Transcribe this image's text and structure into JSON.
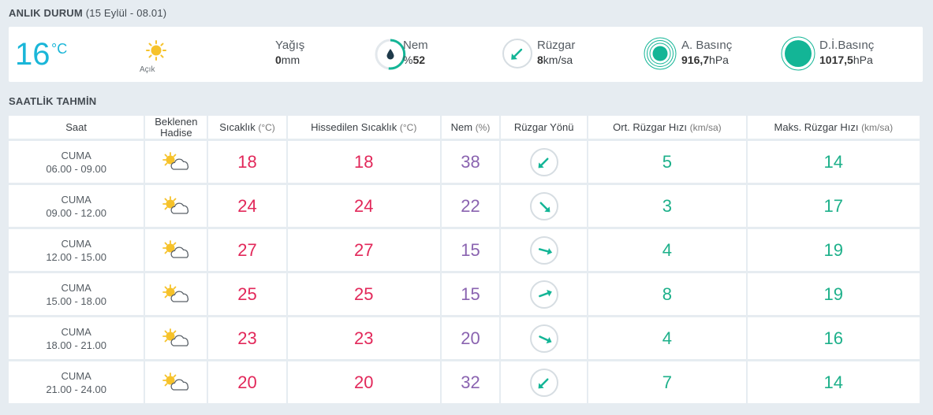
{
  "now": {
    "title": "ANLIK DURUM",
    "date_range": "(15 Eylül - 08.01)",
    "temperature": "16",
    "unit": "°C",
    "condition": "Açık",
    "condition_icon": "sun-icon",
    "precip_label": "Yağış",
    "precip_value": "0",
    "precip_unit": "mm",
    "humidity_label": "Nem",
    "humidity_prefix": "%",
    "humidity_value": "52",
    "wind_label": "Rüzgar",
    "wind_value": "8",
    "wind_unit": "km/sa",
    "pressure_label": "A. Basınç",
    "pressure_value": "916,7",
    "pressure_unit": "hPa",
    "sea_pressure_label": "D.İ.Basınç",
    "sea_pressure_value": "1017,5",
    "sea_pressure_unit": "hPa",
    "accent_color": "#1ab6d8",
    "gauge_color": "#13b596"
  },
  "hourly": {
    "title": "SAATLİK TAHMİN",
    "headers": {
      "time": "Saat",
      "event": "Beklenen Hadise",
      "temp": "Sıcaklık",
      "temp_unit": "(°C)",
      "feels": "Hissedilen Sıcaklık",
      "feels_unit": "(°C)",
      "humidity": "Nem",
      "humidity_unit": "(%)",
      "wind_dir": "Rüzgar Yönü",
      "wind_avg": "Ort. Rüzgar Hızı",
      "wind_avg_unit": "(km/sa)",
      "wind_max": "Maks. Rüzgar Hızı",
      "wind_max_unit": "(km/sa)"
    },
    "rows": [
      {
        "day": "CUMA",
        "time": "06.00 - 09.00",
        "icon": "partly-cloudy-icon",
        "temp": "18",
        "feels": "18",
        "humidity": "38",
        "wind_dir_deg": 225,
        "wind_avg": "5",
        "wind_max": "14"
      },
      {
        "day": "CUMA",
        "time": "09.00 - 12.00",
        "icon": "partly-cloudy-icon",
        "temp": "24",
        "feels": "24",
        "humidity": "22",
        "wind_dir_deg": 135,
        "wind_avg": "3",
        "wind_max": "17"
      },
      {
        "day": "CUMA",
        "time": "12.00 - 15.00",
        "icon": "partly-cloudy-icon",
        "temp": "27",
        "feels": "27",
        "humidity": "15",
        "wind_dir_deg": 105,
        "wind_avg": "4",
        "wind_max": "19"
      },
      {
        "day": "CUMA",
        "time": "15.00 - 18.00",
        "icon": "partly-cloudy-icon",
        "temp": "25",
        "feels": "25",
        "humidity": "15",
        "wind_dir_deg": 70,
        "wind_avg": "8",
        "wind_max": "19"
      },
      {
        "day": "CUMA",
        "time": "18.00 - 21.00",
        "icon": "partly-cloudy-icon",
        "temp": "23",
        "feels": "23",
        "humidity": "20",
        "wind_dir_deg": 115,
        "wind_avg": "4",
        "wind_max": "16"
      },
      {
        "day": "CUMA",
        "time": "21.00 - 24.00",
        "icon": "partly-cloudy-icon",
        "temp": "20",
        "feels": "20",
        "humidity": "32",
        "wind_dir_deg": 225,
        "wind_avg": "7",
        "wind_max": "14"
      }
    ],
    "colors": {
      "temp": "#e2285a",
      "humidity": "#8a63b0",
      "wind": "#1db08a",
      "arrow": "#13b596"
    }
  }
}
